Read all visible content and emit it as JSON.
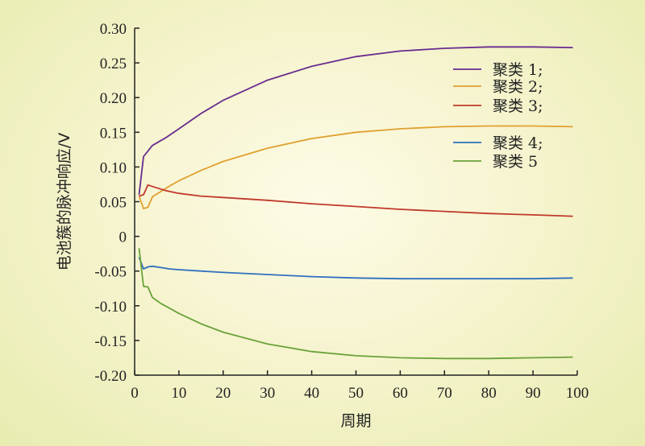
{
  "chart_data": {
    "type": "line",
    "title": "",
    "xlabel": "周期",
    "ylabel": "电池簇的脉冲响应/V",
    "xlim": [
      0,
      100
    ],
    "ylim": [
      -0.2,
      0.3
    ],
    "x_ticks": [
      "0",
      "10",
      "20",
      "30",
      "40",
      "50",
      "60",
      "70",
      "80",
      "90",
      "100"
    ],
    "y_ticks": [
      "0.30",
      "0.25",
      "0.20",
      "0.15",
      "0.10",
      "0.05",
      "0",
      "-0.05",
      "-0.10",
      "-0.15",
      "-0.20"
    ],
    "legend_position": "top-right",
    "series": [
      {
        "name": "聚类 1;",
        "color": "#6a2c8f",
        "x": [
          1,
          2,
          4,
          7,
          10,
          15,
          20,
          30,
          40,
          50,
          60,
          70,
          80,
          90,
          99
        ],
        "y": [
          0.06,
          0.115,
          0.131,
          0.142,
          0.155,
          0.177,
          0.196,
          0.225,
          0.245,
          0.259,
          0.267,
          0.271,
          0.273,
          0.273,
          0.272
        ]
      },
      {
        "name": "聚类 2;",
        "color": "#e0a030",
        "x": [
          1,
          2,
          3,
          4,
          6,
          8,
          10,
          15,
          20,
          30,
          40,
          50,
          60,
          70,
          80,
          90,
          99
        ],
        "y": [
          0.058,
          0.04,
          0.042,
          0.057,
          0.065,
          0.073,
          0.08,
          0.095,
          0.108,
          0.127,
          0.141,
          0.15,
          0.155,
          0.158,
          0.159,
          0.159,
          0.158
        ]
      },
      {
        "name": "聚类 3;",
        "color": "#c0392b",
        "x": [
          1,
          2,
          3,
          5,
          7,
          10,
          15,
          20,
          30,
          40,
          50,
          60,
          70,
          80,
          90,
          99
        ],
        "y": [
          0.058,
          0.06,
          0.074,
          0.07,
          0.066,
          0.062,
          0.058,
          0.056,
          0.052,
          0.047,
          0.043,
          0.039,
          0.036,
          0.033,
          0.031,
          0.029
        ]
      },
      {
        "name": "聚类 4;",
        "color": "#2f6fc0",
        "x": [
          1,
          2,
          3,
          4,
          6,
          8,
          10,
          15,
          20,
          30,
          40,
          50,
          60,
          70,
          80,
          90,
          99
        ],
        "y": [
          -0.03,
          -0.047,
          -0.044,
          -0.043,
          -0.045,
          -0.047,
          -0.048,
          -0.05,
          -0.052,
          -0.055,
          -0.058,
          -0.06,
          -0.061,
          -0.061,
          -0.061,
          -0.061,
          -0.06
        ]
      },
      {
        "name": "聚类 5",
        "color": "#6aa23a",
        "x": [
          1,
          2,
          3,
          4,
          6,
          8,
          10,
          15,
          20,
          30,
          40,
          50,
          60,
          70,
          80,
          90,
          99
        ],
        "y": [
          -0.017,
          -0.072,
          -0.073,
          -0.088,
          -0.097,
          -0.104,
          -0.111,
          -0.126,
          -0.138,
          -0.155,
          -0.166,
          -0.172,
          -0.175,
          -0.176,
          -0.176,
          -0.175,
          -0.174
        ]
      }
    ]
  }
}
